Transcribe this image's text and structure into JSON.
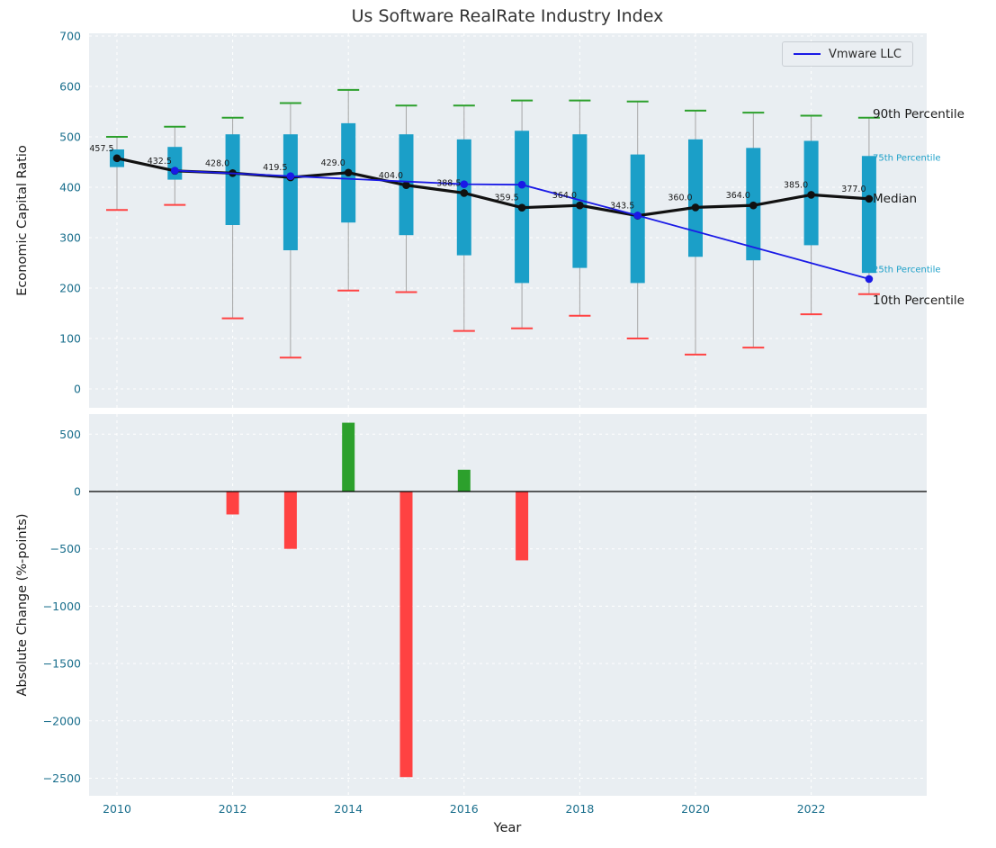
{
  "title": "Us Software RealRate Industry Index",
  "legend": {
    "label": "Vmware LLC"
  },
  "colors": {
    "plot_bg": "#e9eef2",
    "grid": "#ffffff",
    "tick": "#196e8c",
    "box": "#1b9fc8",
    "cap_top": "#2ca02c",
    "cap_bottom": "#ff4242",
    "whisker": "#a6a6a6",
    "median": "#111111",
    "company": "#1a1ae6",
    "bar_pos": "#2ca02c",
    "bar_neg": "#ff4242"
  },
  "chart_data": [
    {
      "type": "boxplot",
      "title": "Us Software RealRate Industry Index",
      "ylabel": "Economic Capital Ratio",
      "ylim": [
        -37,
        705
      ],
      "yticks": [
        0,
        100,
        200,
        300,
        400,
        500,
        600,
        700
      ],
      "years": [
        2010,
        2011,
        2012,
        2013,
        2014,
        2015,
        2016,
        2017,
        2018,
        2019,
        2020,
        2021,
        2022,
        2023
      ],
      "series": {
        "p90": [
          500,
          520,
          538,
          567,
          593,
          562,
          562,
          572,
          572,
          570,
          552,
          548,
          542,
          538
        ],
        "p75": [
          475,
          480,
          505,
          505,
          527,
          505,
          495,
          512,
          505,
          465,
          495,
          478,
          492,
          462
        ],
        "median": [
          457.5,
          432.5,
          428.0,
          419.5,
          429.0,
          404.0,
          388.5,
          359.5,
          364.0,
          343.5,
          360.0,
          364.0,
          385.0,
          377.0
        ],
        "p25": [
          440,
          415,
          325,
          275,
          330,
          305,
          265,
          210,
          240,
          210,
          262,
          255,
          285,
          230
        ],
        "p10": [
          355,
          365,
          140,
          62,
          195,
          192,
          115,
          120,
          145,
          100,
          68,
          82,
          148,
          188
        ]
      },
      "median_labels": [
        "457.5",
        "432.5",
        "428.0",
        "419.5",
        "429.0",
        "404.0",
        "388.5",
        "359.5",
        "364.0",
        "343.5",
        "360.0",
        "364.0",
        "385.0",
        "377.0"
      ],
      "company_line": {
        "name": "Vmware LLC",
        "points": [
          [
            2011,
            433
          ],
          [
            2013,
            422
          ],
          [
            2016,
            406
          ],
          [
            2017,
            405
          ],
          [
            2019,
            344
          ],
          [
            2023,
            218
          ]
        ]
      },
      "right_labels": [
        {
          "text": "90th Percentile",
          "value": 545,
          "color": "#1a1a1a",
          "size": 13.5
        },
        {
          "text": "75th Percentile",
          "value": 460,
          "color": "#1b9fc8",
          "size": 10
        },
        {
          "text": "Median",
          "value": 377,
          "color": "#1a1a1a",
          "size": 13.5
        },
        {
          "text": "25th Percentile",
          "value": 238,
          "color": "#1b9fc8",
          "size": 10
        },
        {
          "text": "10th Percentile",
          "value": 175,
          "color": "#1a1a1a",
          "size": 13.5
        }
      ],
      "legend_position": "upper right",
      "grid": true
    },
    {
      "type": "bar",
      "ylabel": "Absolute Change (%-points)",
      "xlabel": "Year",
      "ylim": [
        -2650,
        675
      ],
      "yticks": [
        500,
        0,
        -500,
        -1000,
        -1500,
        -2000,
        -2500
      ],
      "xticks": [
        2010,
        2012,
        2014,
        2016,
        2018,
        2020,
        2022
      ],
      "bars": [
        {
          "year": 2012,
          "value": -200
        },
        {
          "year": 2013,
          "value": -500
        },
        {
          "year": 2014,
          "value": 600
        },
        {
          "year": 2015,
          "value": -2490
        },
        {
          "year": 2016,
          "value": 190
        },
        {
          "year": 2017,
          "value": -600
        }
      ],
      "grid": true
    }
  ]
}
